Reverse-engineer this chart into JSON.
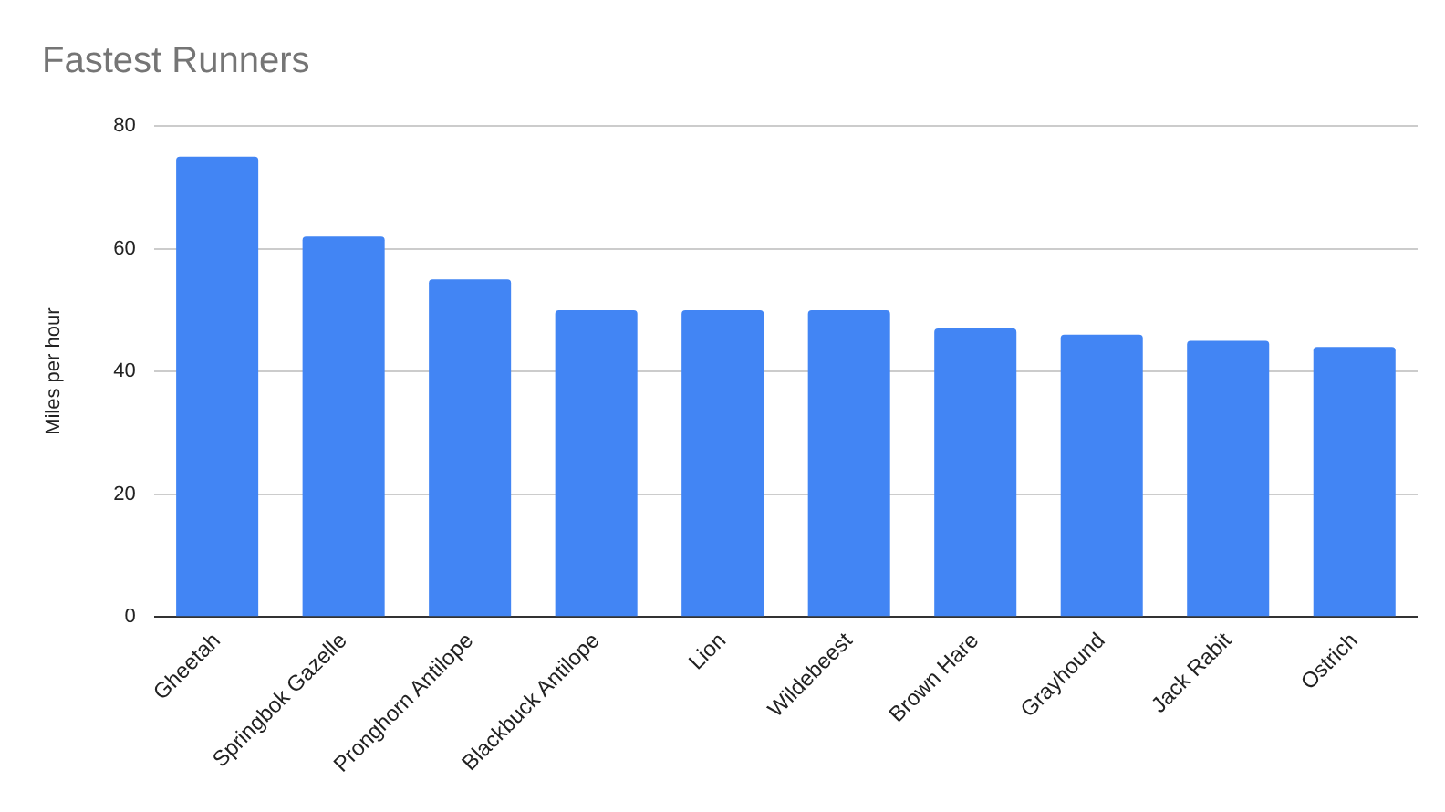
{
  "chart_data": {
    "type": "bar",
    "title": "Fastest Runners",
    "ylabel": "Miles per hour",
    "categories": [
      "Gheetah",
      "Springbok Gazelle",
      "Pronghorn Antilope",
      "Blackbuck Antilope",
      "Lion",
      "Wildebeest",
      "Brown Hare",
      "Grayhound",
      "Jack Rabit",
      "Ostrich"
    ],
    "values": [
      75,
      62,
      55,
      50,
      50,
      50,
      47,
      46,
      45,
      44
    ],
    "color": "#4285f4",
    "ylim": [
      0,
      80
    ],
    "yticks": [
      0,
      20,
      40,
      60,
      80
    ],
    "grid": "y",
    "legend": false
  }
}
